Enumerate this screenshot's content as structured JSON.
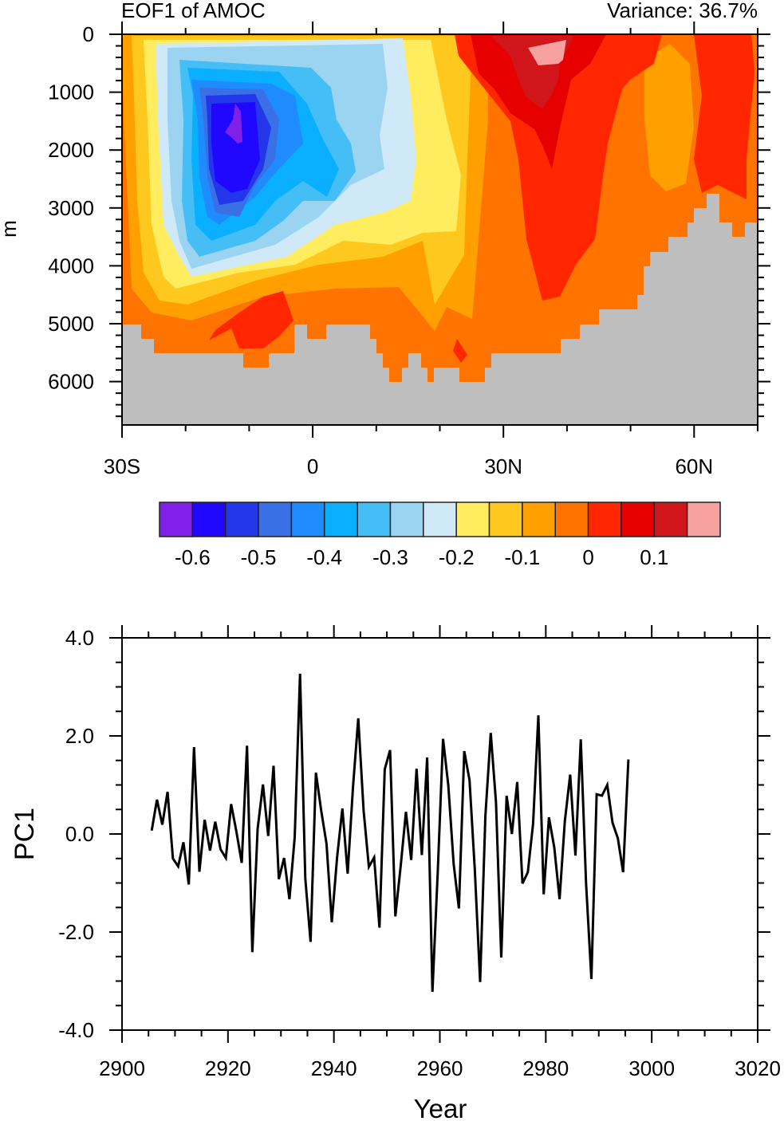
{
  "chart_data": [
    {
      "type": "heatmap",
      "title": "EOF1 of AMOC",
      "subtitle": "Variance: 36.7%",
      "xlabel": "",
      "ylabel": "m",
      "x_ticks": [
        {
          "value": -30,
          "label": "30S"
        },
        {
          "value": 0,
          "label": "0"
        },
        {
          "value": 30,
          "label": "30N"
        },
        {
          "value": 60,
          "label": "60N"
        }
      ],
      "xlim": [
        -30,
        70
      ],
      "y_ticks": [
        0,
        1000,
        2000,
        3000,
        4000,
        5000,
        6000
      ],
      "y_tick_labels": [
        "0",
        "1000",
        "2000",
        "3000",
        "4000",
        "5000",
        "6000"
      ],
      "ylim": [
        6700,
        0
      ],
      "missing_color": "#BEBEBE",
      "colorbar": {
        "colors": [
          "#8020E8",
          "#2008FF",
          "#2436EA",
          "#3A70E6",
          "#1E8CFF",
          "#0AAFFF",
          "#45BEF5",
          "#9BD4F0",
          "#D0E9F9",
          "#FFED5F",
          "#FFC81E",
          "#FFA000",
          "#FF7300",
          "#FF2600",
          "#E60000",
          "#D0161A",
          "#F7A0A0"
        ],
        "label_values": [
          -0.6,
          -0.5,
          -0.4,
          -0.3,
          -0.2,
          -0.1,
          0,
          0.1
        ],
        "labels": [
          "-0.6",
          "-0.5",
          "-0.4",
          "-0.3",
          "-0.2",
          "-0.1",
          "0",
          "0.1"
        ],
        "level_step": 0.05
      }
    },
    {
      "type": "line",
      "title": "",
      "xlabel": "Year",
      "ylabel": "PC1",
      "xlim": [
        2900,
        3020
      ],
      "ylim": [
        -4,
        4
      ],
      "x_ticks": [
        2900,
        2920,
        2940,
        2960,
        2980,
        3000,
        3020
      ],
      "x_tick_labels": [
        "2900",
        "2920",
        "2940",
        "2960",
        "2980",
        "3000",
        "3020"
      ],
      "y_ticks": [
        -4,
        -2,
        0,
        2,
        4
      ],
      "y_tick_labels": [
        "-4.0",
        "-2.0",
        "0.0",
        "2.0",
        "4.0"
      ],
      "x_start": 2905.6,
      "x_step": 1,
      "series": [
        {
          "name": "PC1",
          "color": "#000000",
          "values": [
            0.07,
            0.7,
            0.19,
            0.86,
            -0.5,
            -0.66,
            -0.17,
            -1.03,
            1.77,
            -0.77,
            0.29,
            -0.34,
            0.25,
            -0.31,
            -0.49,
            0.61,
            0.04,
            -0.59,
            1.8,
            -2.41,
            0.1,
            1.01,
            -0.04,
            1.39,
            -0.92,
            -0.49,
            -1.33,
            -0.07,
            3.27,
            -0.91,
            -2.2,
            1.25,
            0.48,
            -0.2,
            -1.8,
            -0.47,
            0.52,
            -0.81,
            0.96,
            2.36,
            0.48,
            -0.67,
            -0.48,
            -1.91,
            1.32,
            1.71,
            -1.68,
            -0.65,
            0.45,
            -0.53,
            1.33,
            -0.43,
            1.56,
            -3.22,
            -0.8,
            1.94,
            0.99,
            -0.61,
            -1.52,
            1.69,
            1.1,
            -0.72,
            -3.02,
            0.37,
            2.06,
            0.64,
            -2.52,
            0.78,
            0.0,
            1.06,
            -1.01,
            -0.78,
            0.21,
            2.42,
            -1.23,
            0.34,
            -0.28,
            -1.33,
            0.26,
            1.21,
            -0.44,
            1.93,
            -1.0,
            -2.96,
            0.81,
            0.78,
            1.0,
            0.23,
            -0.09,
            -0.78,
            1.52
          ]
        }
      ]
    }
  ]
}
